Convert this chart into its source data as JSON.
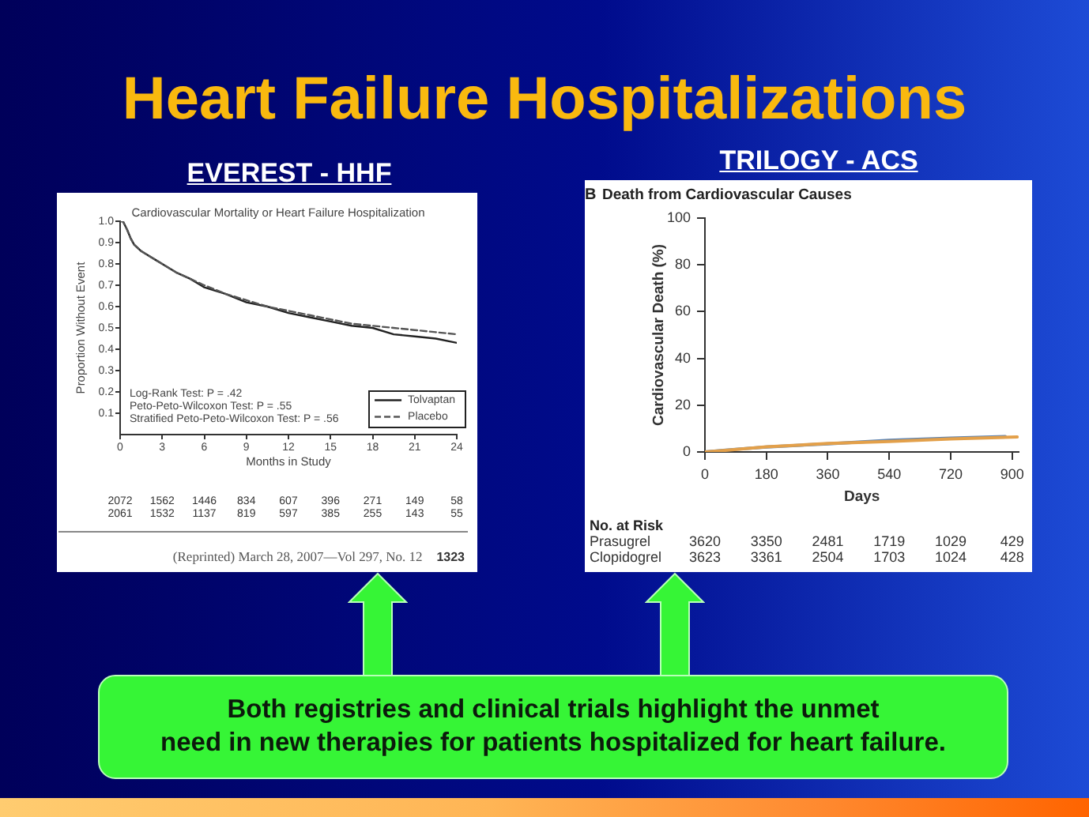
{
  "chart_data": [
    {
      "type": "other",
      "title": "Heart Failure Hospitalizations"
    },
    {
      "type": "line",
      "title": "EVEREST - HHF",
      "subtitle": "Cardiovascular Mortality or Heart Failure Hospitalization",
      "xlabel": "Months in Study",
      "ylabel": "Proportion Without Event",
      "x": [
        0,
        0.2,
        0.5,
        0.75,
        1,
        1.5,
        2,
        2.5,
        3,
        4,
        5,
        6,
        7.5,
        9,
        10.5,
        12,
        13.5,
        15,
        16.5,
        18,
        19.5,
        21,
        22.5,
        24
      ],
      "series": [
        {
          "name": "Tolvaptan",
          "color": "#222222",
          "line_style": "solid",
          "values": [
            1,
            1,
            0.96,
            0.92,
            0.89,
            0.86,
            0.84,
            0.82,
            0.8,
            0.76,
            0.73,
            0.69,
            0.66,
            0.62,
            0.6,
            0.57,
            0.55,
            0.53,
            0.51,
            0.5,
            0.47,
            0.46,
            0.45,
            0.43
          ]
        },
        {
          "name": "Placebo",
          "color": "#555555",
          "line_style": "dashed",
          "values": [
            1,
            1,
            0.96,
            0.92,
            0.89,
            0.86,
            0.84,
            0.82,
            0.8,
            0.76,
            0.73,
            0.7,
            0.66,
            0.63,
            0.6,
            0.58,
            0.56,
            0.54,
            0.52,
            0.51,
            0.5,
            0.49,
            0.48,
            0.47
          ]
        }
      ],
      "xlim": [
        0,
        24
      ],
      "xticks": [
        0,
        3,
        6,
        9,
        12,
        15,
        18,
        21,
        24
      ],
      "ylim": [
        0,
        1
      ],
      "yticks": [
        0.1,
        0.2,
        0.3,
        0.4,
        0.5,
        0.6,
        0.7,
        0.8,
        0.9,
        {
          "value": 1,
          "label": "1.0"
        }
      ],
      "legend": "bottom right",
      "annotations": [
        "Log-Rank Test: P = .42",
        "Peto-Peto-Wilcoxon Test: P = .55",
        "Stratified Peto-Peto-Wilcoxon Test: P = .56",
        "2072 1562 1446 834 607 396 271 149 58",
        "2061 1532 1137 819 597 385 255 143 55",
        "(Reprinted) March 28, 2007—Vol 297, No. 12",
        "1323"
      ]
    },
    {
      "type": "line",
      "title": "TRILOGY - ACS",
      "subtitle": "Death from Cardiovascular Causes",
      "xlabel": "Days",
      "ylabel": "Cardiovascular Death (%)",
      "series": [
        {
          "color": "#5f84b0",
          "x": [
            0,
            60,
            180,
            360,
            540,
            720,
            880
          ],
          "values": [
            0,
            0.8,
            2.1,
            3.5,
            5,
            5.9,
            6.6
          ]
        },
        {
          "color": "#e3a04a",
          "x": [
            0,
            60,
            180,
            360,
            540,
            720,
            915
          ],
          "values": [
            0,
            0.7,
            2.2,
            3.6,
            4.5,
            5.6,
            6.4
          ]
        }
      ],
      "xlim": [
        0,
        920
      ],
      "xticks": [
        0,
        180,
        360,
        540,
        720,
        900
      ],
      "ylim": [
        0,
        100
      ],
      "yticks": [
        0,
        20,
        40,
        60,
        80,
        100
      ],
      "annotations": [
        "B",
        "No. at Risk",
        "Prasugrel",
        "3620 3350 2481 1719 1029 429",
        "Clopidogrel",
        "3623 3361 2504 1703 1024 428"
      ]
    },
    {
      "type": "other",
      "annotations": [
        "Both registries and clinical trials highlight the unmet\nneed in new therapies for patients hospitalized for heart failure."
      ]
    }
  ]
}
